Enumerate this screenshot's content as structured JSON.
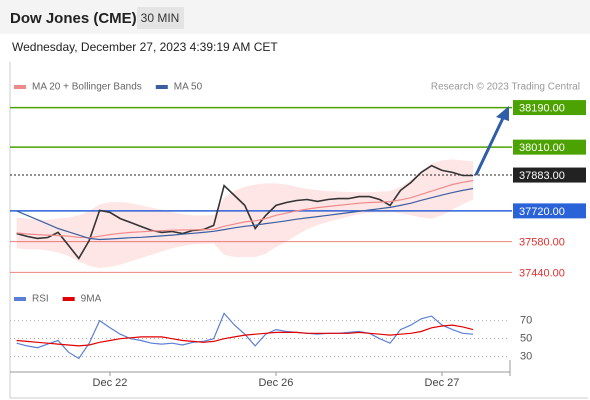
{
  "header": {
    "title": "Dow Jones (CME)",
    "interval": "30 MIN",
    "timestamp": "Wednesday, December 27, 2023 4:39:19 AM CET"
  },
  "chart_data": [
    {
      "type": "line",
      "source": "Research © 2023 Trading Central",
      "ylim": [
        37360,
        38270
      ],
      "series": [
        {
          "name": "Price",
          "color": "#333333",
          "legend": false,
          "values": [
            37617,
            37604,
            37595,
            37599,
            37622,
            37563,
            37504,
            37585,
            37722,
            37713,
            37685,
            37667,
            37649,
            37631,
            37622,
            37626,
            37617,
            37631,
            37635,
            37654,
            37835,
            37790,
            37745,
            37640,
            37699,
            37745,
            37758,
            37767,
            37772,
            37763,
            37772,
            37776,
            37776,
            37785,
            37785,
            37772,
            37745,
            37813,
            37849,
            37895,
            37926,
            37904,
            37895,
            37881,
            37881
          ]
        },
        {
          "name": "MA 20 + Bollinger Bands",
          "color": "#f08a8a",
          "values": [
            37620,
            37615,
            37612,
            37610,
            37608,
            37605,
            37600,
            37598,
            37605,
            37612,
            37618,
            37622,
            37625,
            37628,
            37630,
            37632,
            37633,
            37634,
            37635,
            37636,
            37650,
            37660,
            37670,
            37675,
            37685,
            37700,
            37710,
            37720,
            37728,
            37735,
            37740,
            37745,
            37750,
            37755,
            37758,
            37760,
            37762,
            37770,
            37780,
            37795,
            37810,
            37825,
            37840,
            37850,
            37858
          ]
        },
        {
          "name": "MA 50",
          "color": "#3a5fa0",
          "values": [
            37720,
            37700,
            37680,
            37660,
            37640,
            37625,
            37610,
            37595,
            37590,
            37592,
            37595,
            37598,
            37600,
            37603,
            37606,
            37610,
            37614,
            37618,
            37622,
            37627,
            37635,
            37643,
            37650,
            37655,
            37662,
            37668,
            37675,
            37682,
            37688,
            37694,
            37700,
            37706,
            37712,
            37718,
            37724,
            37730,
            37736,
            37745,
            37755,
            37768,
            37780,
            37792,
            37803,
            37813,
            37822
          ]
        }
      ],
      "bands": {
        "color": "#ffd6d6",
        "upper": [
          37690,
          37685,
          37680,
          37680,
          37685,
          37690,
          37700,
          37720,
          37750,
          37760,
          37760,
          37755,
          37745,
          37735,
          37725,
          37715,
          37705,
          37700,
          37700,
          37700,
          37780,
          37810,
          37830,
          37840,
          37845,
          37845,
          37840,
          37830,
          37820,
          37815,
          37810,
          37808,
          37806,
          37805,
          37805,
          37808,
          37810,
          37830,
          37860,
          37900,
          37935,
          37950,
          37955,
          37950,
          37945
        ],
        "lower": [
          37550,
          37545,
          37545,
          37540,
          37530,
          37515,
          37490,
          37470,
          37460,
          37465,
          37475,
          37490,
          37505,
          37520,
          37535,
          37550,
          37560,
          37568,
          37570,
          37572,
          37520,
          37510,
          37510,
          37510,
          37525,
          37555,
          37580,
          37610,
          37636,
          37655,
          37670,
          37682,
          37694,
          37705,
          37711,
          37712,
          37714,
          37710,
          37700,
          37690,
          37685,
          37700,
          37725,
          37750,
          37771
        ]
      },
      "levels": [
        {
          "value": 38190,
          "label": "38190.00",
          "color": "#4ca200",
          "boxed": true
        },
        {
          "value": 38010,
          "label": "38010.00",
          "color": "#4ca200",
          "boxed": true
        },
        {
          "value": 37883,
          "label": "37883.00",
          "color": "#222222",
          "boxed": true,
          "dotted": true
        },
        {
          "value": 37720,
          "label": "37720.00",
          "color": "#2a62d8",
          "boxed": true
        },
        {
          "value": 37580,
          "label": "37580.00",
          "color": "#e03030",
          "boxed": false
        },
        {
          "value": 37440,
          "label": "37440.00",
          "color": "#e03030",
          "boxed": false
        }
      ]
    },
    {
      "type": "line",
      "categories": [
        null,
        null,
        null,
        null,
        null,
        null,
        null,
        null,
        null,
        "Dec 22",
        null,
        null,
        null,
        null,
        null,
        null,
        null,
        null,
        null,
        null,
        null,
        null,
        null,
        null,
        null,
        "Dec 26",
        null,
        null,
        null,
        null,
        null,
        null,
        null,
        null,
        null,
        null,
        null,
        null,
        null,
        null,
        null,
        "Dec 27",
        null,
        null,
        null
      ],
      "ylim": [
        13,
        104
      ],
      "yticks": [
        30,
        50,
        70
      ],
      "series": [
        {
          "name": "RSI",
          "color": "#5b7fd6",
          "values": [
            45,
            42,
            40,
            44,
            48,
            35,
            28,
            45,
            70,
            62,
            55,
            50,
            48,
            45,
            44,
            45,
            43,
            46,
            47,
            50,
            78,
            65,
            55,
            42,
            55,
            60,
            58,
            57,
            56,
            55,
            56,
            56,
            57,
            58,
            56,
            50,
            45,
            60,
            65,
            72,
            75,
            65,
            60,
            56,
            55
          ]
        },
        {
          "name": "9MA",
          "color": "#e00000",
          "values": [
            48,
            47,
            46,
            45,
            44,
            43,
            42,
            43,
            46,
            48,
            50,
            51,
            52,
            52,
            52,
            50,
            48,
            47,
            46,
            47,
            50,
            52,
            54,
            55,
            56,
            57,
            57,
            57,
            56,
            56,
            56,
            56,
            56,
            57,
            56,
            55,
            54,
            55,
            56,
            58,
            62,
            64,
            65,
            63,
            60
          ]
        }
      ]
    }
  ]
}
